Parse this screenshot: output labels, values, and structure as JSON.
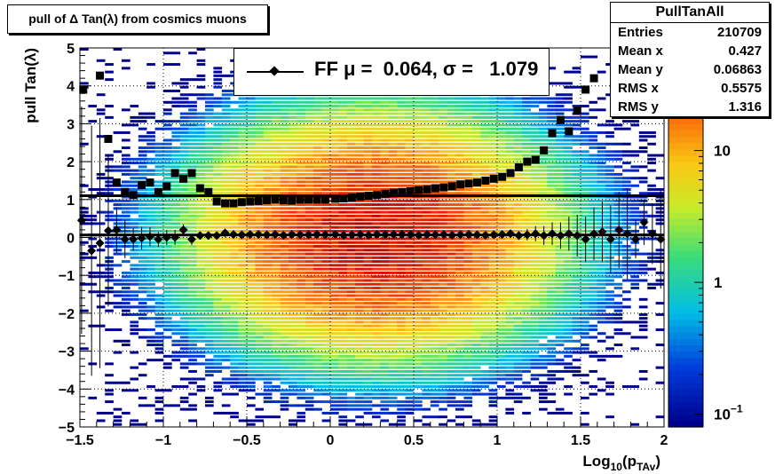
{
  "title": "pull of Δ Tan(λ) from cosmics muons",
  "stats": {
    "name": "PullTanAll",
    "rows": [
      {
        "label": "Entries",
        "value": "210709"
      },
      {
        "label": "Mean x",
        "value": "0.427"
      },
      {
        "label": "Mean y",
        "value": "0.06863"
      },
      {
        "label": "RMS x",
        "value": "0.5575"
      },
      {
        "label": "RMS y",
        "value": "1.316"
      }
    ]
  },
  "legend": {
    "text": "FF μ =  0.064, σ =   1.079"
  },
  "chart_data": {
    "type": "heatmap",
    "xlabel": "Log10(pTAv)",
    "ylabel": "pull Tan(λ)",
    "xlim": [
      -1.5,
      2
    ],
    "ylim": [
      -5,
      5
    ],
    "x_ticks": [
      "−1.5",
      "−1",
      "−0.5",
      "0",
      "0.5",
      "1",
      "1.5",
      "2"
    ],
    "y_ticks": [
      "−5",
      "−4",
      "−3",
      "−2",
      "−1",
      "0",
      "1",
      "2",
      "3",
      "4",
      "5"
    ],
    "z_scale": "log",
    "z_ticks": [
      "10−1",
      "1",
      "10"
    ],
    "grid": true,
    "density": {
      "mean_x": 0.427,
      "rms_x": 0.5575,
      "mean_y": 0.06863,
      "rms_y": 1.316
    },
    "rms_points": {
      "x": [
        -1.48,
        -1.43,
        -1.38,
        -1.33,
        -1.28,
        -1.23,
        -1.18,
        -1.13,
        -1.08,
        -1.03,
        -0.98,
        -0.93,
        -0.88,
        -0.83,
        -0.78,
        -0.73,
        -0.68,
        -0.63,
        -0.58,
        -0.53,
        -0.48,
        -0.43,
        -0.38,
        -0.33,
        -0.28,
        -0.23,
        -0.18,
        -0.13,
        -0.08,
        -0.03,
        0.03,
        0.08,
        0.13,
        0.18,
        0.23,
        0.28,
        0.33,
        0.38,
        0.43,
        0.48,
        0.53,
        0.58,
        0.63,
        0.68,
        0.73,
        0.78,
        0.83,
        0.88,
        0.93,
        0.98,
        1.03,
        1.08,
        1.13,
        1.18,
        1.23,
        1.28,
        1.33,
        1.38,
        1.43,
        1.48,
        1.53,
        1.58,
        1.63,
        1.68,
        1.73,
        1.78,
        1.83,
        1.88,
        1.93
      ],
      "y": [
        3.9,
        null,
        4.27,
        2.6,
        1.45,
        1.2,
        1.12,
        1.38,
        1.45,
        1.2,
        1.35,
        1.7,
        1.55,
        1.7,
        1.3,
        1.2,
        0.95,
        0.9,
        0.9,
        0.93,
        0.95,
        0.96,
        0.98,
        1.0,
        0.98,
        0.97,
        1.0,
        1.0,
        1.0,
        1.0,
        1.02,
        1.03,
        1.05,
        1.08,
        1.1,
        1.12,
        1.15,
        1.18,
        1.2,
        1.22,
        1.25,
        1.27,
        1.3,
        1.32,
        1.35,
        1.4,
        1.42,
        1.45,
        1.5,
        1.55,
        1.6,
        1.7,
        1.85,
        2.0,
        2.05,
        2.3,
        2.75,
        3.1,
        2.8,
        3.35,
        3.9,
        4.2,
        null,
        null,
        null,
        null,
        null,
        null,
        null
      ]
    },
    "mean_points": {
      "x": [
        -1.49,
        -1.43,
        -1.38,
        -1.33,
        -1.28,
        -1.23,
        -1.18,
        -1.13,
        -1.08,
        -1.03,
        -0.98,
        -0.93,
        -0.88,
        -0.83,
        -0.78,
        -0.73,
        -0.68,
        -0.63,
        -0.58,
        -0.53,
        -0.48,
        -0.43,
        -0.38,
        -0.33,
        -0.28,
        -0.23,
        -0.18,
        -0.13,
        -0.08,
        -0.03,
        0.03,
        0.08,
        0.13,
        0.18,
        0.23,
        0.28,
        0.33,
        0.38,
        0.43,
        0.48,
        0.53,
        0.58,
        0.63,
        0.68,
        0.73,
        0.78,
        0.83,
        0.88,
        0.93,
        0.98,
        1.03,
        1.08,
        1.13,
        1.18,
        1.23,
        1.28,
        1.33,
        1.38,
        1.43,
        1.48,
        1.53,
        1.58,
        1.63,
        1.68,
        1.73,
        1.78,
        1.83,
        1.88,
        1.93,
        1.98
      ],
      "y": [
        0.45,
        -0.35,
        -0.15,
        0.18,
        0.2,
        -0.05,
        -0.05,
        -0.02,
        0.02,
        -0.05,
        0.0,
        0.0,
        0.2,
        -0.05,
        0.05,
        0.05,
        0.05,
        0.12,
        0.08,
        0.07,
        0.08,
        0.08,
        0.07,
        0.08,
        0.06,
        0.08,
        0.07,
        0.07,
        0.08,
        0.07,
        0.08,
        0.06,
        0.07,
        0.08,
        0.06,
        0.08,
        0.07,
        0.08,
        0.08,
        0.07,
        0.06,
        0.08,
        0.07,
        0.08,
        0.06,
        0.07,
        0.08,
        0.07,
        0.06,
        0.07,
        0.08,
        0.1,
        0.05,
        0.07,
        0.1,
        0.05,
        0.1,
        0.05,
        0.1,
        0.05,
        -0.05,
        0.1,
        0.15,
        -0.05,
        0.2,
        0.1,
        -0.05,
        0.4,
        0.1,
        -0.05
      ],
      "err": [
        3.0,
        3.3,
        3.3,
        2.0,
        0.6,
        0.5,
        0.3,
        0.3,
        0.25,
        0.2,
        0.2,
        0.2,
        0.15,
        0.15,
        0.1,
        0.1,
        0.1,
        0.08,
        0.06,
        0.05,
        0.04,
        0.04,
        0.04,
        0.04,
        0.04,
        0.04,
        0.04,
        0.04,
        0.04,
        0.04,
        0.04,
        0.04,
        0.04,
        0.04,
        0.04,
        0.04,
        0.04,
        0.04,
        0.04,
        0.04,
        0.04,
        0.05,
        0.05,
        0.05,
        0.05,
        0.05,
        0.05,
        0.06,
        0.07,
        0.07,
        0.08,
        0.1,
        0.12,
        0.15,
        0.2,
        0.25,
        0.3,
        0.35,
        0.45,
        0.55,
        0.6,
        0.7,
        0.8,
        0.9,
        1.0,
        1.2,
        0.5,
        0.6,
        0.8,
        1.3
      ]
    },
    "fit_lines": [
      {
        "x": [
          -1.5,
          2.0
        ],
        "y": [
          0.064,
          0.064
        ]
      },
      {
        "x": [
          -1.5,
          2.0
        ],
        "y": [
          1.1,
          1.1
        ]
      }
    ]
  }
}
